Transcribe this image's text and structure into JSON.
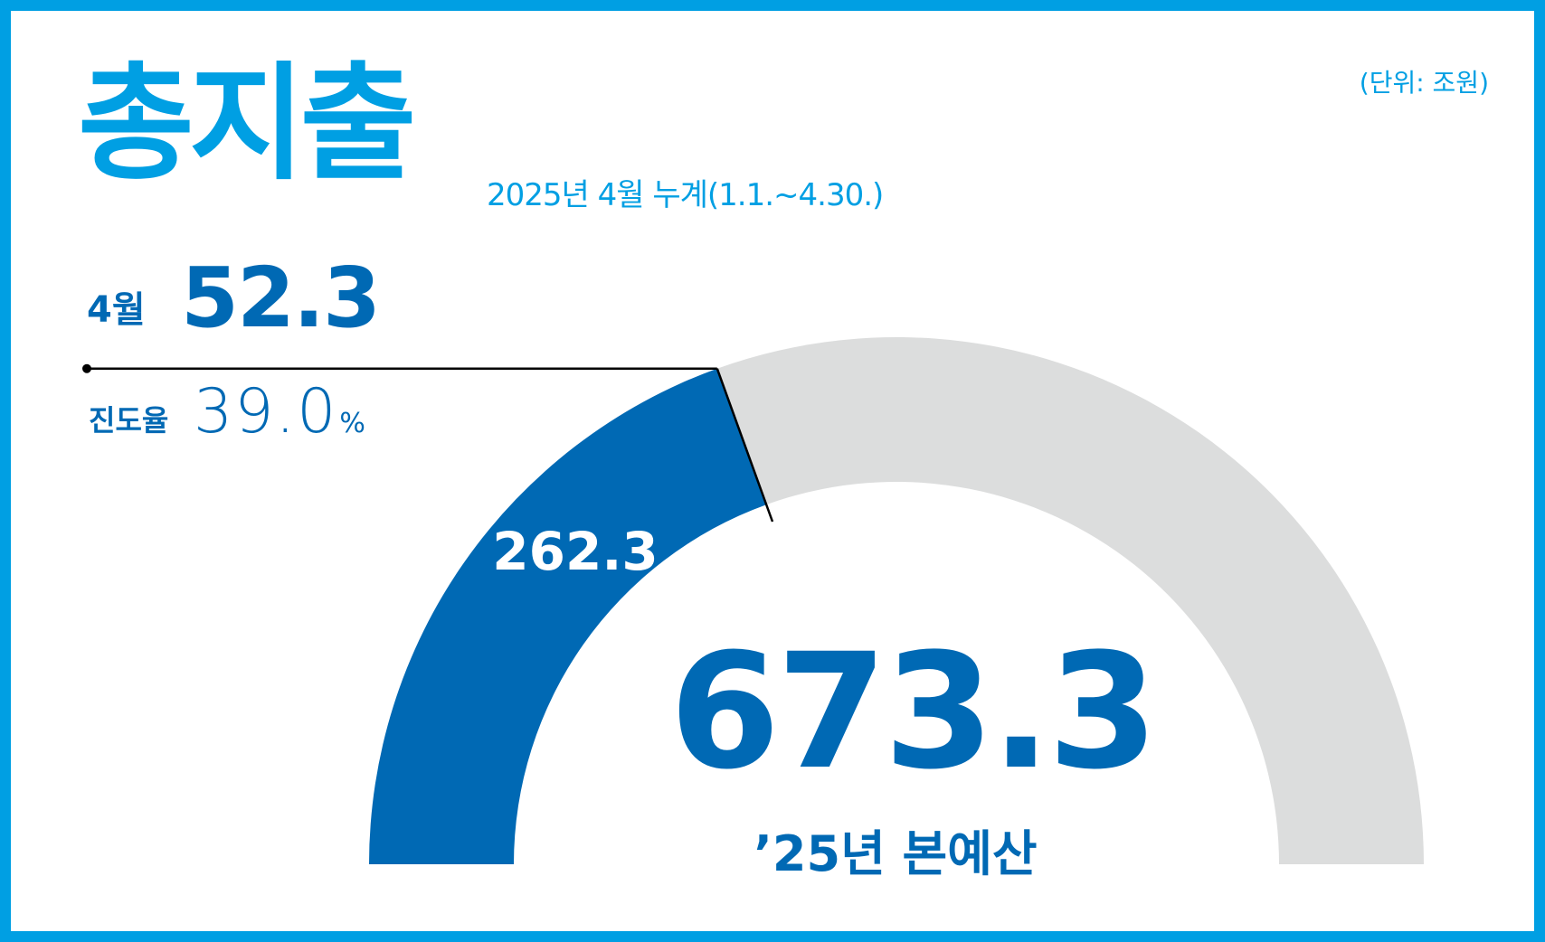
{
  "header": {
    "title": "총지출",
    "period": "2025년 4월 누계(1.1.~4.30.)",
    "unit": "(단위: 조원)"
  },
  "month": {
    "label": "4월",
    "value": "52.3"
  },
  "progress": {
    "label": "진도율",
    "value": "39.0",
    "unit": "%"
  },
  "chart_data": {
    "type": "gauge",
    "cumulative_label": "262.3",
    "cumulative": 262.3,
    "budget": 673.3,
    "budget_text": "673.3",
    "budget_label": "’25년 본예산",
    "progress_percent": 39.0,
    "colors": {
      "filled": "#0069b4",
      "remaining": "#dcdddd",
      "frame": "#009fe3"
    }
  }
}
